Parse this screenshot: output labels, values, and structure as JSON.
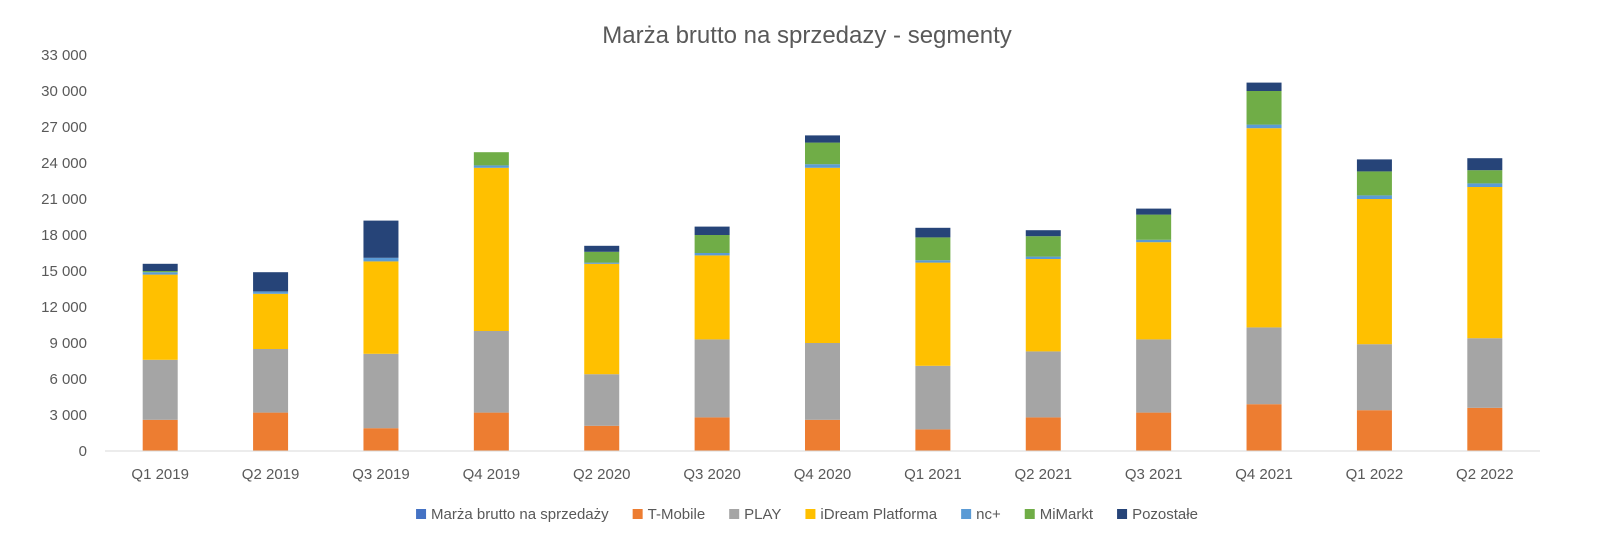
{
  "chart_data": {
    "type": "bar",
    "stacked": true,
    "title": "Marża brutto na sprzedazy - segmenty",
    "xlabel": "",
    "ylabel": "",
    "ylim": [
      0,
      33000
    ],
    "yticks": [
      0,
      3000,
      6000,
      9000,
      12000,
      15000,
      18000,
      21000,
      24000,
      27000,
      30000,
      33000
    ],
    "ytick_labels": [
      "0",
      "3 000",
      "6 000",
      "9 000",
      "12 000",
      "15 000",
      "18 000",
      "21 000",
      "24 000",
      "27 000",
      "30 000",
      "33 000"
    ],
    "grid": false,
    "legend_position": "bottom",
    "categories": [
      "Q1 2019",
      "Q2 2019",
      "Q3 2019",
      "Q4 2019",
      "Q2 2020",
      "Q3 2020",
      "Q4 2020",
      "Q1 2021",
      "Q2 2021",
      "Q3 2021",
      "Q4 2021",
      "Q1 2022",
      "Q2 2022"
    ],
    "series": [
      {
        "name": "Marża brutto na sprzedaży",
        "color": "#4472C4",
        "values": [
          0,
          0,
          0,
          0,
          0,
          0,
          0,
          0,
          0,
          0,
          0,
          0,
          0
        ]
      },
      {
        "name": "T-Mobile",
        "color": "#ED7D31",
        "values": [
          2600,
          3200,
          1900,
          3200,
          2100,
          2800,
          2600,
          1800,
          2800,
          3200,
          3900,
          3400,
          3600
        ]
      },
      {
        "name": "PLAY",
        "color": "#A5A5A5",
        "values": [
          5000,
          5300,
          6200,
          6800,
          4300,
          6500,
          6400,
          5300,
          5500,
          6100,
          6400,
          5500,
          5800
        ]
      },
      {
        "name": "iDream Platforma",
        "color": "#FFC000",
        "values": [
          7100,
          4600,
          7700,
          13600,
          9200,
          7000,
          14600,
          8600,
          7700,
          8100,
          16600,
          12100,
          12600
        ]
      },
      {
        "name": "nc+",
        "color": "#5B9BD5",
        "values": [
          200,
          200,
          300,
          200,
          100,
          200,
          300,
          200,
          200,
          200,
          300,
          300,
          300
        ]
      },
      {
        "name": "MiMarkt",
        "color": "#70AD47",
        "values": [
          100,
          0,
          0,
          1100,
          900,
          1500,
          1800,
          1900,
          1700,
          2100,
          2800,
          2000,
          1100
        ]
      },
      {
        "name": "Pozostałe",
        "color": "#264478",
        "values": [
          600,
          1600,
          3100,
          0,
          500,
          700,
          600,
          800,
          500,
          500,
          700,
          1000,
          1000
        ]
      }
    ]
  }
}
